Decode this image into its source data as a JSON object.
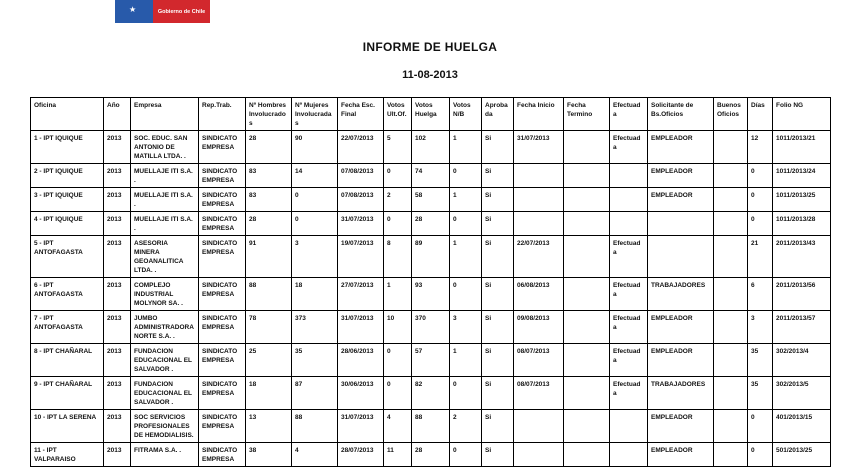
{
  "logo": {
    "text": "Gobierno de Chile",
    "blue_color": "#285aaa",
    "red_color": "#d2282d",
    "star_icon": "★"
  },
  "title": "INFORME DE HUELGA",
  "date": "11-08-2013",
  "table": {
    "columns": [
      "Oficina",
      "Año",
      "Empresa",
      "Rep.Trab.",
      "Nº Hombres Involucrados",
      "Nº Mujeres Involucradas",
      "Fecha Esc. Final",
      "Votos Ult.Of.",
      "Votos Huelga",
      "Votos N/B",
      "Aprobada",
      "Fecha Inicio",
      "Fecha Termino",
      "Efectuada",
      "Solicitante de Bs.Oficios",
      "Buenos Oficios",
      "Días",
      "Folio NG"
    ],
    "rows": [
      [
        "1 - IPT IQUIQUE",
        "2013",
        "SOC. EDUC. SAN ANTONIO DE MATILLA LTDA. .",
        "SINDICATO EMPRESA",
        "28",
        "90",
        "22/07/2013",
        "5",
        "102",
        "1",
        "Si",
        "31/07/2013",
        "",
        "Efectuada",
        "EMPLEADOR",
        "",
        "12",
        "1011/2013/21"
      ],
      [
        "2 - IPT IQUIQUE",
        "2013",
        "MUELLAJE ITI S.A. .",
        "SINDICATO EMPRESA",
        "83",
        "14",
        "07/08/2013",
        "0",
        "74",
        "0",
        "Si",
        "",
        "",
        "",
        "EMPLEADOR",
        "",
        "0",
        "1011/2013/24"
      ],
      [
        "3 - IPT IQUIQUE",
        "2013",
        "MUELLAJE ITI S.A. .",
        "SINDICATO EMPRESA",
        "83",
        "0",
        "07/08/2013",
        "2",
        "58",
        "1",
        "Si",
        "",
        "",
        "",
        "EMPLEADOR",
        "",
        "0",
        "1011/2013/25"
      ],
      [
        "4 - IPT IQUIQUE",
        "2013",
        "MUELLAJE ITI S.A. .",
        "SINDICATO EMPRESA",
        "28",
        "0",
        "31/07/2013",
        "0",
        "28",
        "0",
        "Si",
        "",
        "",
        "",
        "",
        "",
        "0",
        "1011/2013/28"
      ],
      [
        "5 - IPT ANTOFAGASTA",
        "2013",
        "ASESORIA MINERA GEOANALITICA LTDA. .",
        "SINDICATO EMPRESA",
        "91",
        "3",
        "19/07/2013",
        "8",
        "89",
        "1",
        "Si",
        "22/07/2013",
        "",
        "Efectuada",
        "",
        "",
        "21",
        "2011/2013/43"
      ],
      [
        "6 - IPT ANTOFAGASTA",
        "2013",
        "COMPLEJO INDUSTRIAL MOLYNOR SA. .",
        "SINDICATO EMPRESA",
        "88",
        "18",
        "27/07/2013",
        "1",
        "93",
        "0",
        "Si",
        "06/08/2013",
        "",
        "Efectuada",
        "TRABAJADORES",
        "",
        "6",
        "2011/2013/56"
      ],
      [
        "7 - IPT ANTOFAGASTA",
        "2013",
        "JUMBO ADMINISTRADORA NORTE S.A. .",
        "SINDICATO EMPRESA",
        "78",
        "373",
        "31/07/2013",
        "10",
        "370",
        "3",
        "Si",
        "09/08/2013",
        "",
        "Efectuada",
        "EMPLEADOR",
        "",
        "3",
        "2011/2013/57"
      ],
      [
        "8 - IPT CHAÑARAL",
        "2013",
        "FUNDACION EDUCACIONAL EL SALVADOR .",
        "SINDICATO EMPRESA",
        "25",
        "35",
        "28/06/2013",
        "0",
        "57",
        "1",
        "Si",
        "08/07/2013",
        "",
        "Efectuada",
        "EMPLEADOR",
        "",
        "35",
        "302/2013/4"
      ],
      [
        "9 - IPT CHAÑARAL",
        "2013",
        "FUNDACION EDUCACIONAL EL SALVADOR .",
        "SINDICATO EMPRESA",
        "18",
        "87",
        "30/06/2013",
        "0",
        "82",
        "0",
        "Si",
        "08/07/2013",
        "",
        "Efectuada",
        "TRABAJADORES",
        "",
        "35",
        "302/2013/5"
      ],
      [
        "10 - IPT LA SERENA",
        "2013",
        "SOC SERVICIOS PROFESIONALES DE HEMODIALISIS.",
        "SINDICATO EMPRESA",
        "13",
        "88",
        "31/07/2013",
        "4",
        "88",
        "2",
        "Si",
        "",
        "",
        "",
        "EMPLEADOR",
        "",
        "0",
        "401/2013/15"
      ],
      [
        "11 - IPT VALPARAISO",
        "2013",
        "FITRAMA S.A. .",
        "SINDICATO EMPRESA",
        "38",
        "4",
        "28/07/2013",
        "11",
        "28",
        "0",
        "Si",
        "",
        "",
        "",
        "EMPLEADOR",
        "",
        "0",
        "501/2013/25"
      ]
    ]
  }
}
